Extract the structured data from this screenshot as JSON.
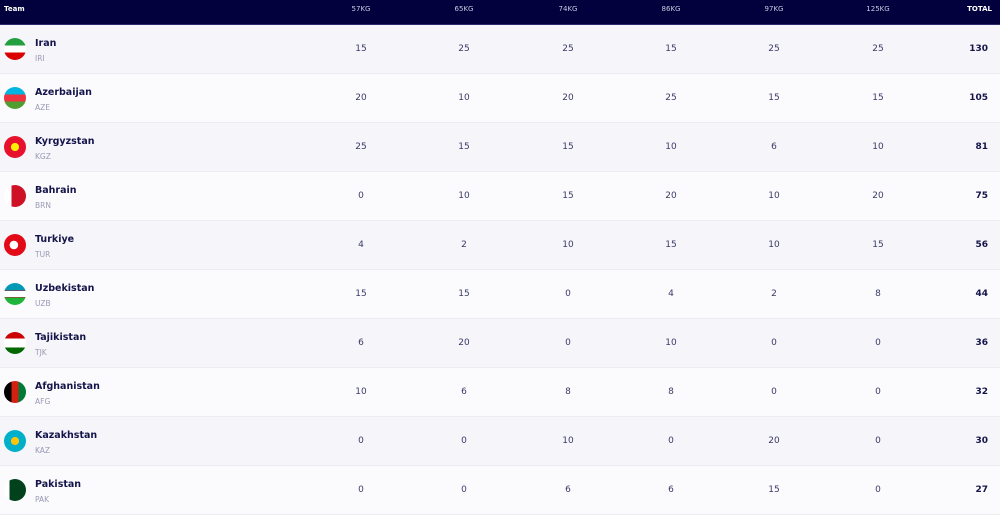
{
  "header": {
    "team": "Team",
    "weights": [
      "57KG",
      "65KG",
      "74KG",
      "86KG",
      "97KG",
      "125KG"
    ],
    "total": "TOTAL"
  },
  "rows": [
    {
      "name": "Iran",
      "code": "IRI",
      "values": [
        "15",
        "25",
        "25",
        "15",
        "25",
        "25"
      ],
      "total": "130",
      "flag": "linear-gradient(#239f40 33%,#fff 33%,#fff 66%,#da0000 66%)"
    },
    {
      "name": "Azerbaijan",
      "code": "AZE",
      "values": [
        "20",
        "10",
        "20",
        "25",
        "15",
        "15"
      ],
      "total": "105",
      "flag": "linear-gradient(#00b5e2 33%,#ef3340 33%,#ef3340 66%,#509e2f 66%)"
    },
    {
      "name": "Kyrgyzstan",
      "code": "KGZ",
      "values": [
        "25",
        "15",
        "15",
        "10",
        "6",
        "10"
      ],
      "total": "81",
      "flag": "radial-gradient(circle,#ffef00 25%,#e8112d 27%)"
    },
    {
      "name": "Bahrain",
      "code": "BRN",
      "values": [
        "0",
        "10",
        "15",
        "20",
        "10",
        "20"
      ],
      "total": "75",
      "flag": "linear-gradient(90deg,#fff 35%,#ce1126 35%)"
    },
    {
      "name": "Turkiye",
      "code": "TUR",
      "values": [
        "4",
        "2",
        "10",
        "15",
        "10",
        "15"
      ],
      "total": "56",
      "flag": "radial-gradient(circle at 45% 50%,#fff 25%,#e30a17 27%)"
    },
    {
      "name": "Uzbekistan",
      "code": "UZB",
      "values": [
        "15",
        "15",
        "0",
        "4",
        "2",
        "8"
      ],
      "total": "44",
      "flag": "linear-gradient(#0099b5 33%,#ce1126 33%,#ce1126 36%,#fff 36%,#fff 63%,#ce1126 63%,#ce1126 66%,#1eb53a 66%)"
    },
    {
      "name": "Tajikistan",
      "code": "TJK",
      "values": [
        "6",
        "20",
        "0",
        "10",
        "0",
        "0"
      ],
      "total": "36",
      "flag": "linear-gradient(#cc0000 30%,#fff 30%,#fff 70%,#006600 70%)"
    },
    {
      "name": "Afghanistan",
      "code": "AFG",
      "values": [
        "10",
        "6",
        "8",
        "8",
        "0",
        "0"
      ],
      "total": "32",
      "flag": "linear-gradient(90deg,#000 33%,#d32011 33%,#d32011 66%,#007a36 66%)"
    },
    {
      "name": "Kazakhstan",
      "code": "KAZ",
      "values": [
        "0",
        "0",
        "10",
        "0",
        "20",
        "0"
      ],
      "total": "30",
      "flag": "radial-gradient(circle,#fec50c 25%,#00afca 27%)"
    },
    {
      "name": "Pakistan",
      "code": "PAK",
      "values": [
        "0",
        "0",
        "6",
        "6",
        "15",
        "0"
      ],
      "total": "27",
      "flag": "linear-gradient(90deg,#fff 25%,#01411c 25%)"
    }
  ]
}
